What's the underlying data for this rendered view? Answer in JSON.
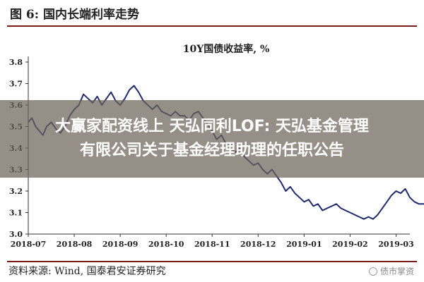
{
  "header": {
    "figure_title": "图 6:  国内长端利率走势"
  },
  "chart_data": {
    "type": "line",
    "title": "10Y国债收益率, %",
    "xlabel": "",
    "ylabel": "",
    "ylim": [
      3.0,
      3.8
    ],
    "yticks": [
      "3.0",
      "3.1",
      "3.2",
      "3.3",
      "3.4",
      "3.5",
      "3.6",
      "3.7",
      "3.8"
    ],
    "xticks": [
      "2018-07",
      "2018-08",
      "2018-09",
      "2018-10",
      "2018-11",
      "2018-12",
      "2019-01",
      "2019-02",
      "2019-03"
    ],
    "grid": false,
    "series": [
      {
        "color": "#1f2a6e",
        "x": [
          0.0,
          0.08,
          0.16,
          0.24,
          0.32,
          0.4,
          0.5,
          0.6,
          0.7,
          0.8,
          0.9,
          1.0,
          1.1,
          1.2,
          1.3,
          1.4,
          1.5,
          1.6,
          1.7,
          1.8,
          1.9,
          2.0,
          2.1,
          2.2,
          2.3,
          2.4,
          2.5,
          2.6,
          2.7,
          2.8,
          2.9,
          3.0,
          3.1,
          3.2,
          3.3,
          3.4,
          3.5,
          3.6,
          3.7,
          3.8,
          3.9,
          4.0,
          4.1,
          4.2,
          4.3,
          4.4,
          4.5,
          4.6,
          4.7,
          4.8,
          4.9,
          5.0,
          5.1,
          5.2,
          5.3,
          5.4,
          5.5,
          5.6,
          5.7,
          5.8,
          5.9,
          6.0,
          6.1,
          6.2,
          6.3,
          6.4,
          6.5,
          6.6,
          6.7,
          6.8,
          6.9,
          7.0,
          7.1,
          7.2,
          7.3,
          7.4,
          7.5,
          7.6,
          7.7,
          7.8,
          7.9,
          8.0,
          8.1,
          8.2,
          8.3,
          8.4,
          8.5,
          8.6,
          8.7
        ],
        "y": [
          3.52,
          3.54,
          3.5,
          3.48,
          3.46,
          3.5,
          3.52,
          3.49,
          3.47,
          3.5,
          3.55,
          3.58,
          3.6,
          3.65,
          3.63,
          3.61,
          3.64,
          3.6,
          3.63,
          3.66,
          3.62,
          3.6,
          3.63,
          3.67,
          3.69,
          3.66,
          3.62,
          3.6,
          3.58,
          3.6,
          3.57,
          3.56,
          3.55,
          3.57,
          3.55,
          3.55,
          3.53,
          3.56,
          3.57,
          3.54,
          3.51,
          3.48,
          3.44,
          3.46,
          3.42,
          3.4,
          3.38,
          3.4,
          3.36,
          3.34,
          3.32,
          3.33,
          3.3,
          3.28,
          3.3,
          3.27,
          3.24,
          3.2,
          3.22,
          3.19,
          3.17,
          3.15,
          3.16,
          3.13,
          3.14,
          3.11,
          3.12,
          3.13,
          3.14,
          3.12,
          3.11,
          3.1,
          3.09,
          3.08,
          3.07,
          3.08,
          3.07,
          3.09,
          3.12,
          3.15,
          3.18,
          3.2,
          3.19,
          3.21,
          3.17,
          3.15,
          3.14,
          3.14,
          3.14
        ]
      }
    ]
  },
  "footer": {
    "source": "资料来源:  Wind, 国泰君安证券研究",
    "watermark": "债市掌资"
  },
  "banner": {
    "line1": "大赢家配资线上 天弘同利LOF: 天弘基金管理",
    "line2": "有限公司关于基金经理助理的任职公告"
  }
}
